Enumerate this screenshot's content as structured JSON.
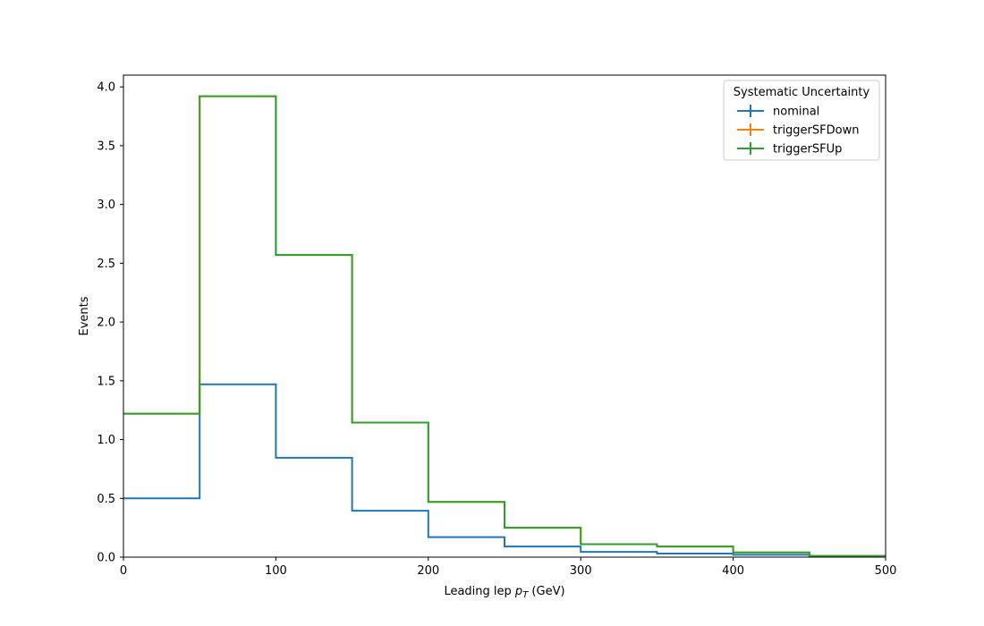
{
  "chart_data": {
    "type": "line",
    "xlabel": "Leading lep",
    "xlabel_sub": "T",
    "xlabel_unit": " (GeV)",
    "xlabel_var": "p",
    "ylabel": "Events",
    "xlim": [
      0,
      500
    ],
    "ylim": [
      0,
      4.1
    ],
    "xticks": [
      0,
      100,
      200,
      300,
      400,
      500
    ],
    "yticks": [
      0.0,
      0.5,
      1.0,
      1.5,
      2.0,
      2.5,
      3.0,
      3.5,
      4.0
    ],
    "ytick_labels": [
      "0.0",
      "0.5",
      "1.0",
      "1.5",
      "2.0",
      "2.5",
      "3.0",
      "3.5",
      "4.0"
    ],
    "grid": false,
    "legend": {
      "title": "Systematic Uncertainty",
      "placement": "top-right"
    },
    "bin_edges": [
      0,
      50,
      100,
      150,
      200,
      250,
      300,
      350,
      400,
      450,
      500
    ],
    "series": [
      {
        "name": "nominal",
        "color": "#1f77b4",
        "values": [
          0.5,
          1.47,
          0.845,
          0.395,
          0.17,
          0.09,
          0.045,
          0.03,
          0.02,
          0.005
        ]
      },
      {
        "name": "triggerSFDown",
        "color": "#ff7f0e",
        "values": [
          1.22,
          3.92,
          2.57,
          1.145,
          0.47,
          0.25,
          0.11,
          0.09,
          0.04,
          0.01
        ]
      },
      {
        "name": "triggerSFUp",
        "color": "#2ca02c",
        "values": [
          1.22,
          3.92,
          2.57,
          1.145,
          0.47,
          0.25,
          0.11,
          0.09,
          0.04,
          0.01
        ]
      }
    ]
  }
}
